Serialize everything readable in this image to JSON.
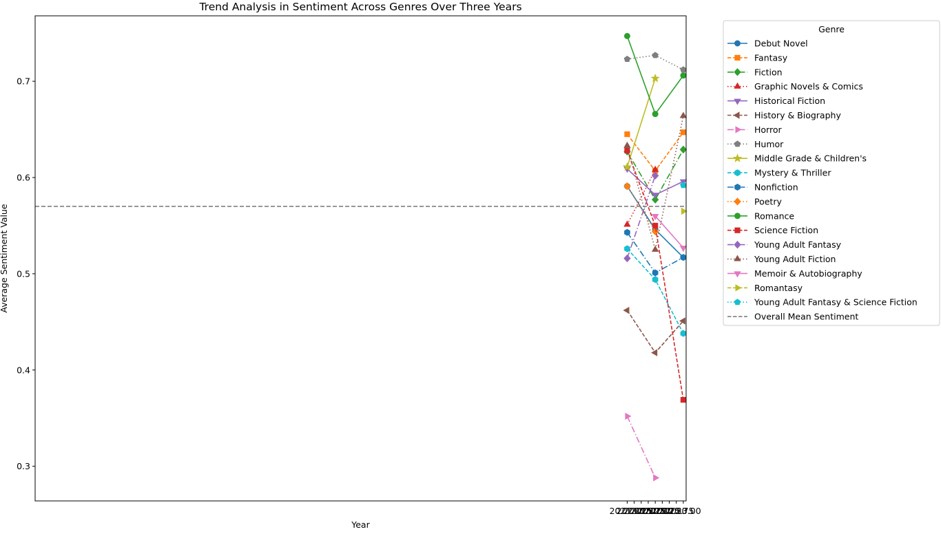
{
  "chart_data": {
    "type": "line",
    "title": "Trend Analysis in Sentiment Across Genres Over Three Years",
    "xlabel": "Year",
    "ylabel": "Average Sentiment Value",
    "xlim": [
      1999.9,
      2023.1
    ],
    "ylim": [
      0.264,
      0.768
    ],
    "x_ticks": [
      "2021.00",
      "2021.25",
      "2021.50",
      "2021.75",
      "2022.00",
      "2022.25",
      "2022.50",
      "2022.75",
      "2023.00"
    ],
    "y_ticks": [
      "0.3",
      "0.4",
      "0.5",
      "0.6",
      "0.7"
    ],
    "grid": false,
    "legend": {
      "title": "Genre",
      "placement": "outside-upper-right"
    },
    "reference_line": {
      "name": "Overall Mean Sentiment",
      "value": 0.57,
      "color": "#7f7f7f",
      "dash": "dashed"
    },
    "series": [
      {
        "name": "Debut Novel",
        "x": [
          2021,
          2022,
          2023
        ],
        "y": [
          0.591,
          0.546,
          0.517
        ],
        "color": "#1f77b4",
        "marker": "circle",
        "dash": "solid"
      },
      {
        "name": "Fantasy",
        "x": [
          2021,
          2022,
          2023
        ],
        "y": [
          0.645,
          0.607,
          0.647
        ],
        "color": "#ff7f0e",
        "marker": "square",
        "dash": "dashed"
      },
      {
        "name": "Fiction",
        "x": [
          2021,
          2022,
          2023
        ],
        "y": [
          0.627,
          0.577,
          0.629
        ],
        "color": "#2ca02c",
        "marker": "diamond",
        "dash": "dashdot"
      },
      {
        "name": "Graphic Novels & Comics",
        "x": [
          2021,
          2022
        ],
        "y": [
          0.551,
          0.608
        ],
        "color": "#d62728",
        "marker": "triangle-up",
        "dash": "dotted"
      },
      {
        "name": "Historical Fiction",
        "x": [
          2021,
          2022,
          2023
        ],
        "y": [
          0.609,
          0.582,
          0.596
        ],
        "color": "#9467bd",
        "marker": "triangle-down",
        "dash": "solid"
      },
      {
        "name": "History & Biography",
        "x": [
          2021,
          2022,
          2023
        ],
        "y": [
          0.462,
          0.418,
          0.451
        ],
        "color": "#8c564b",
        "marker": "triangle-left",
        "dash": "dashed"
      },
      {
        "name": "Horror",
        "x": [
          2021,
          2022
        ],
        "y": [
          0.352,
          0.288
        ],
        "color": "#e377c2",
        "marker": "triangle-right",
        "dash": "dashdot"
      },
      {
        "name": "Humor",
        "x": [
          2021,
          2022,
          2023
        ],
        "y": [
          0.723,
          0.727,
          0.712
        ],
        "color": "#7f7f7f",
        "marker": "pentagon",
        "dash": "dotted"
      },
      {
        "name": "Middle Grade & Children's",
        "x": [
          2021,
          2022
        ],
        "y": [
          0.611,
          0.703
        ],
        "color": "#bcbd22",
        "marker": "star",
        "dash": "solid"
      },
      {
        "name": "Mystery & Thriller",
        "x": [
          2021,
          2022,
          2023
        ],
        "y": [
          0.526,
          0.494,
          0.438
        ],
        "color": "#17becf",
        "marker": "hexagon",
        "dash": "dashed"
      },
      {
        "name": "Nonfiction",
        "x": [
          2021,
          2022,
          2023
        ],
        "y": [
          0.543,
          0.501,
          0.517
        ],
        "color": "#1f77b4",
        "marker": "hexagon",
        "dash": "dashdot"
      },
      {
        "name": "Poetry",
        "x": [
          2021,
          2022
        ],
        "y": [
          0.591,
          0.544
        ],
        "color": "#ff7f0e",
        "marker": "diamond",
        "dash": "dotted"
      },
      {
        "name": "Romance",
        "x": [
          2021,
          2022,
          2023
        ],
        "y": [
          0.747,
          0.666,
          0.706
        ],
        "color": "#2ca02c",
        "marker": "circle",
        "dash": "solid"
      },
      {
        "name": "Science Fiction",
        "x": [
          2021,
          2022,
          2023
        ],
        "y": [
          0.628,
          0.55,
          0.369
        ],
        "color": "#d62728",
        "marker": "square",
        "dash": "dashed"
      },
      {
        "name": "Young Adult Fantasy",
        "x": [
          2021,
          2022
        ],
        "y": [
          0.516,
          0.602
        ],
        "color": "#9467bd",
        "marker": "diamond",
        "dash": "dashdot"
      },
      {
        "name": "Young Adult Fiction",
        "x": [
          2021,
          2022,
          2023
        ],
        "y": [
          0.633,
          0.525,
          0.664
        ],
        "color": "#8c564b",
        "marker": "triangle-up",
        "dash": "dotted"
      },
      {
        "name": "Memoir & Autobiography",
        "x": [
          2022,
          2023
        ],
        "y": [
          0.56,
          0.527
        ],
        "color": "#e377c2",
        "marker": "triangle-down",
        "dash": "solid"
      },
      {
        "name": "Romantasy",
        "x": [
          2023
        ],
        "y": [
          0.565
        ],
        "color": "#bcbd22",
        "marker": "triangle-right",
        "dash": "dashed"
      },
      {
        "name": "Young Adult Fantasy & Science Fiction",
        "x": [
          2023
        ],
        "y": [
          0.592
        ],
        "color": "#17becf",
        "marker": "pentagon",
        "dash": "dotted"
      }
    ]
  }
}
